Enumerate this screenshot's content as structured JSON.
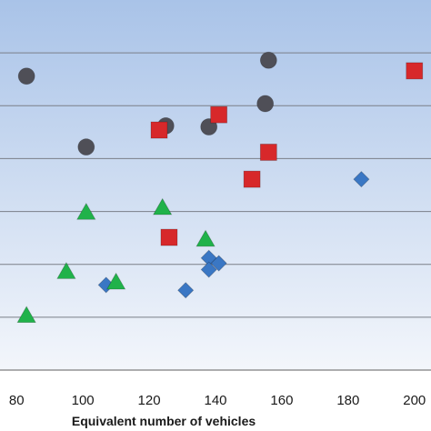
{
  "chart_data": {
    "type": "scatter",
    "title": "",
    "xlabel": "Equivalent number of vehicles",
    "ylabel": "",
    "xlim": [
      75,
      205
    ],
    "ylim": [
      0,
      7
    ],
    "x_ticks": [
      80,
      100,
      120,
      140,
      160,
      180,
      200
    ],
    "y_gridlines": [
      1,
      2,
      3,
      4,
      5,
      6
    ],
    "grid": true,
    "legend": "none",
    "background_gradient": [
      "#a9c3e8",
      "#f3f6fb"
    ],
    "series": [
      {
        "marker": "circle",
        "color": "#4f4f57",
        "points": [
          {
            "x": 83,
            "y": 5.56
          },
          {
            "x": 156,
            "y": 5.86
          },
          {
            "x": 155,
            "y": 5.04
          },
          {
            "x": 125,
            "y": 4.62
          },
          {
            "x": 138,
            "y": 4.6
          },
          {
            "x": 101,
            "y": 4.22
          }
        ]
      },
      {
        "marker": "square",
        "color": "#d7282a",
        "points": [
          {
            "x": 200,
            "y": 5.66
          },
          {
            "x": 141,
            "y": 4.83
          },
          {
            "x": 123,
            "y": 4.54
          },
          {
            "x": 156,
            "y": 4.12
          },
          {
            "x": 151,
            "y": 3.61
          },
          {
            "x": 126,
            "y": 2.51
          }
        ]
      },
      {
        "marker": "diamond",
        "color": "#3a77c4",
        "points": [
          {
            "x": 184,
            "y": 3.61
          },
          {
            "x": 138,
            "y": 2.12
          },
          {
            "x": 141,
            "y": 2.02
          },
          {
            "x": 138,
            "y": 1.9
          },
          {
            "x": 107,
            "y": 1.61
          },
          {
            "x": 131,
            "y": 1.51
          }
        ]
      },
      {
        "marker": "triangle",
        "color": "#20b24a",
        "points": [
          {
            "x": 101,
            "y": 2.98
          },
          {
            "x": 124,
            "y": 3.07
          },
          {
            "x": 137,
            "y": 2.47
          },
          {
            "x": 95,
            "y": 1.86
          },
          {
            "x": 110,
            "y": 1.66
          },
          {
            "x": 83,
            "y": 1.03
          }
        ]
      }
    ]
  }
}
